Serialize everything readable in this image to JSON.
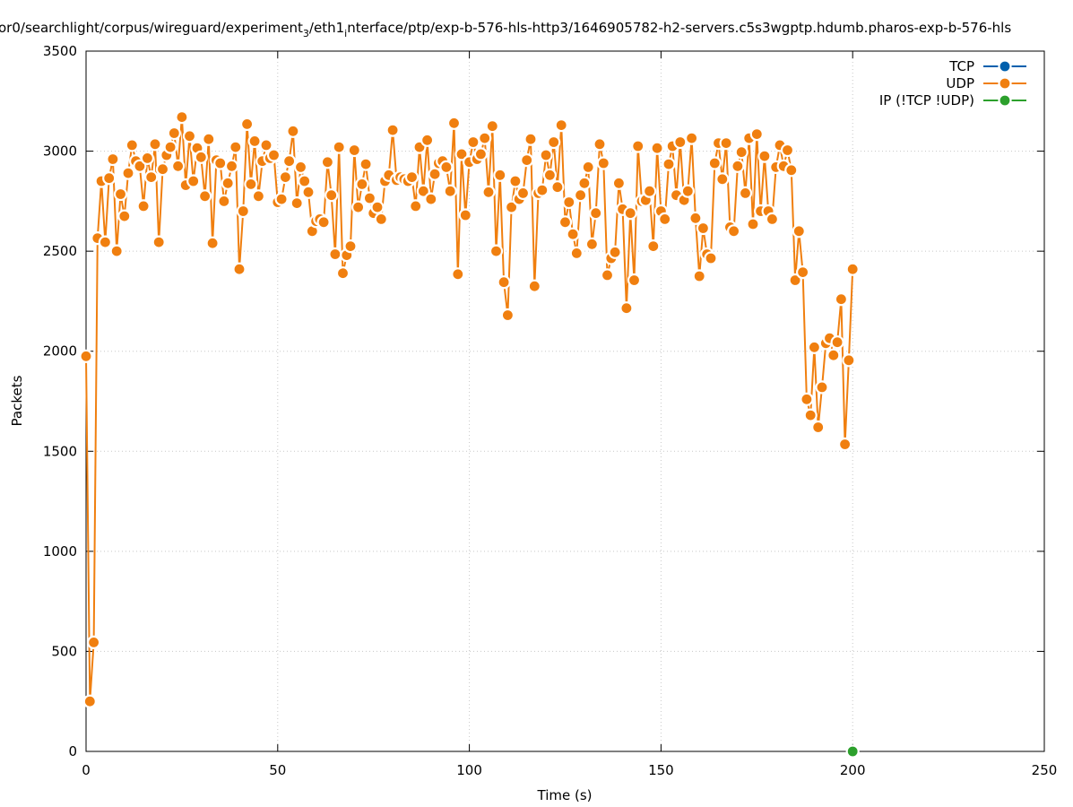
{
  "chart_data": {
    "type": "line",
    "title": "or0/searchlight/corpus/wireguard/experiment",
    "title_sub": "3",
    "title_mid": "/eth1",
    "title_sub2": "i",
    "title_end": "nterface/ptp/exp-b-576-hls-http3/1646905782-h2-servers.c5s3wgptp.hdumb.pharos-exp-b-576-hls",
    "xlabel": "Time (s)",
    "ylabel": "Packets",
    "xlim": [
      0,
      250
    ],
    "ylim": [
      0,
      3500
    ],
    "xticks": [
      "0",
      "50",
      "100",
      "150",
      "200",
      "250"
    ],
    "yticks": [
      "0",
      "500",
      "1000",
      "1500",
      "2000",
      "2500",
      "3000",
      "3500"
    ],
    "grid": true,
    "legend_position": "top-right",
    "series": [
      {
        "name": "TCP",
        "color": "#0060ad",
        "x": [],
        "y": []
      },
      {
        "name": "UDP",
        "color": "#f07f0f",
        "x": [
          0,
          1,
          2,
          3,
          4,
          5,
          6,
          7,
          8,
          9,
          10,
          11,
          12,
          13,
          14,
          15,
          16,
          17,
          18,
          19,
          20,
          21,
          22,
          23,
          24,
          25,
          26,
          27,
          28,
          29,
          30,
          31,
          32,
          33,
          34,
          35,
          36,
          37,
          38,
          39,
          40,
          41,
          42,
          43,
          44,
          45,
          46,
          47,
          48,
          49,
          50,
          51,
          52,
          53,
          54,
          55,
          56,
          57,
          58,
          59,
          60,
          61,
          62,
          63,
          64,
          65,
          66,
          67,
          68,
          69,
          70,
          71,
          72,
          73,
          74,
          75,
          76,
          77,
          78,
          79,
          80,
          81,
          82,
          83,
          84,
          85,
          86,
          87,
          88,
          89,
          90,
          91,
          92,
          93,
          94,
          95,
          96,
          97,
          98,
          99,
          100,
          101,
          102,
          103,
          104,
          105,
          106,
          107,
          108,
          109,
          110,
          111,
          112,
          113,
          114,
          115,
          116,
          117,
          118,
          119,
          120,
          121,
          122,
          123,
          124,
          125,
          126,
          127,
          128,
          129,
          130,
          131,
          132,
          133,
          134,
          135,
          136,
          137,
          138,
          139,
          140,
          141,
          142,
          143,
          144,
          145,
          146,
          147,
          148,
          149,
          150,
          151,
          152,
          153,
          154,
          155,
          156,
          157,
          158,
          159,
          160,
          161,
          162,
          163,
          164,
          165,
          166,
          167,
          168,
          169,
          170,
          171,
          172,
          173,
          174,
          175,
          176,
          177,
          178,
          179,
          180,
          181,
          182,
          183,
          184,
          185,
          186,
          187,
          188,
          189,
          190,
          191,
          192,
          193,
          194,
          195,
          196,
          197,
          198,
          199,
          200
        ],
        "y": [
          1975,
          250,
          545,
          2565,
          2850,
          2545,
          2865,
          2960,
          2500,
          2785,
          2675,
          2890,
          3030,
          2950,
          2925,
          2725,
          2965,
          2870,
          3035,
          2545,
          2910,
          2980,
          3020,
          3090,
          2925,
          3170,
          2830,
          3075,
          2850,
          3015,
          2970,
          2775,
          3060,
          2540,
          2955,
          2940,
          2750,
          2840,
          2925,
          3020,
          2410,
          2700,
          3135,
          2835,
          3050,
          2775,
          2950,
          3030,
          2965,
          2980,
          2745,
          2760,
          2870,
          2950,
          3100,
          2740,
          2920,
          2850,
          2795,
          2600,
          2650,
          2660,
          2645,
          2945,
          2780,
          2485,
          3020,
          2390,
          2480,
          2525,
          3005,
          2720,
          2835,
          2935,
          2765,
          2690,
          2720,
          2660,
          2850,
          2880,
          3105,
          2855,
          2870,
          2860,
          2850,
          2870,
          2725,
          3020,
          2800,
          3055,
          2760,
          2885,
          2940,
          2950,
          2920,
          2800,
          3140,
          2385,
          2985,
          2680,
          2945,
          3045,
          2960,
          2985,
          3065,
          2795,
          3125,
          2500,
          2880,
          2345,
          2180,
          2720,
          2850,
          2760,
          2790,
          2955,
          3060,
          2325,
          2790,
          2805,
          2980,
          2880,
          3045,
          2820,
          3130,
          2645,
          2745,
          2585,
          2490,
          2780,
          2840,
          2920,
          2535,
          2690,
          3035,
          2940,
          2380,
          2465,
          2495,
          2840,
          2710,
          2215,
          2690,
          2355,
          3025,
          2750,
          2755,
          2800,
          2525,
          3015,
          2700,
          2660,
          2935,
          3025,
          2780,
          3045,
          2755,
          2800,
          3065,
          2665,
          2375,
          2615,
          2485,
          2465,
          2940,
          3040,
          2860,
          3040,
          2620,
          2600,
          2925,
          2995,
          2790,
          3065,
          2635,
          3085,
          2700,
          2975,
          2700,
          2660,
          2920,
          3030,
          2925,
          3005,
          2905,
          2355,
          2600,
          2395,
          1760,
          1680,
          2020,
          1620,
          1820,
          2040,
          2065,
          1980,
          2045,
          2260,
          1535,
          1955,
          2410
        ]
      },
      {
        "name": "IP (!TCP  !UDP)",
        "color": "#2ca02c",
        "x": [
          200
        ],
        "y": [
          0
        ]
      }
    ]
  }
}
